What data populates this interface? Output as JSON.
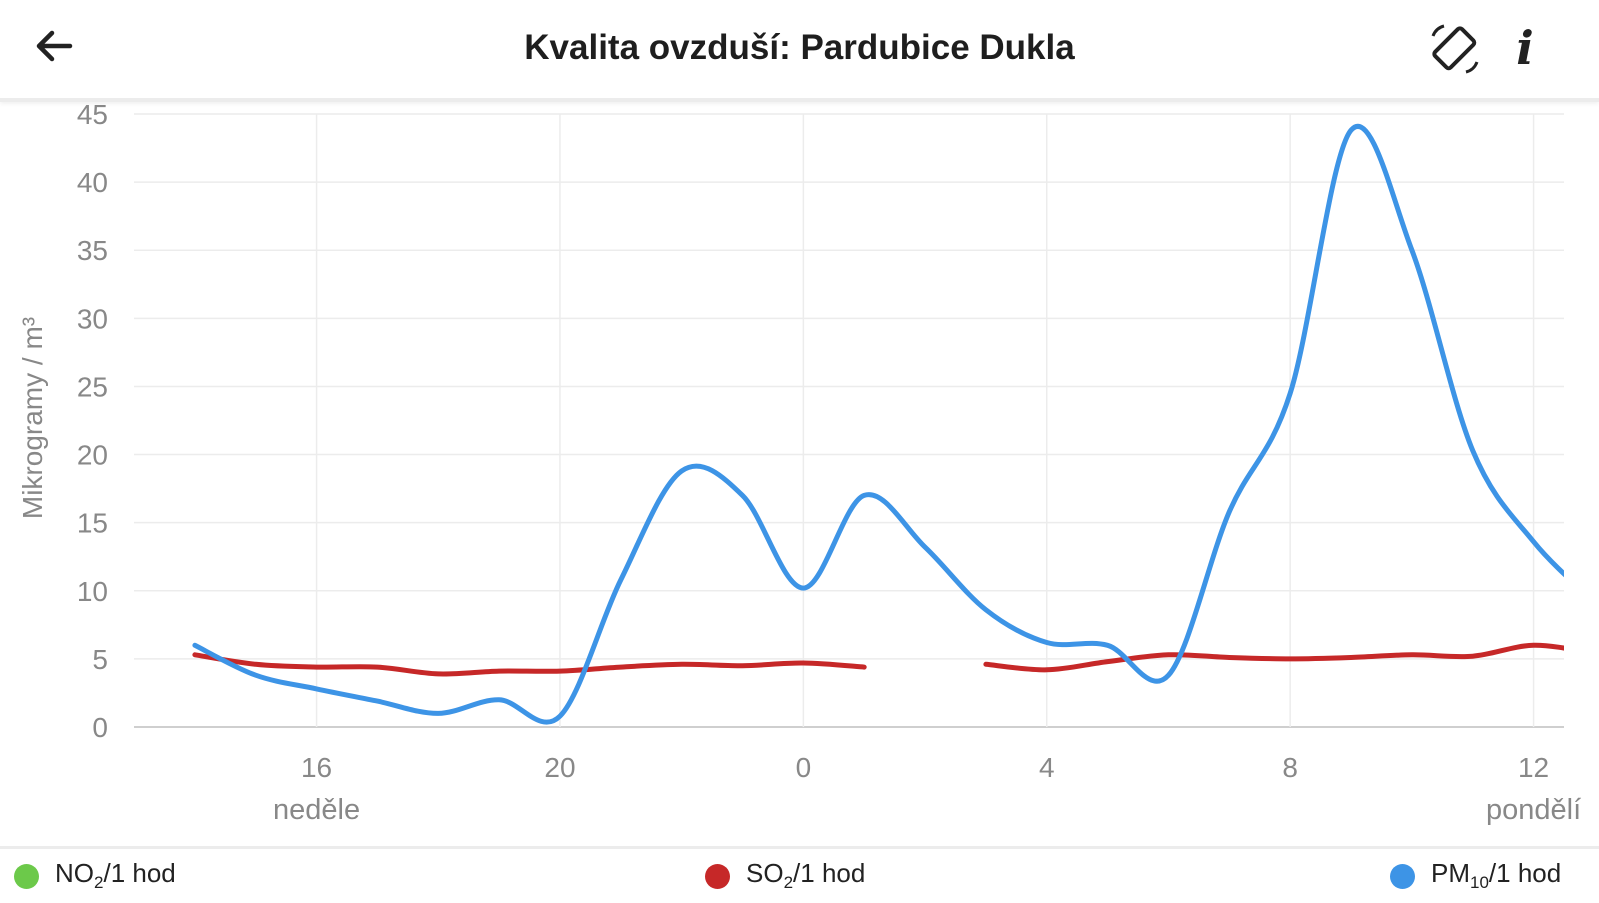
{
  "header": {
    "title": "Kvalita ovzduší: Pardubice Dukla",
    "back_icon": "arrow-left-icon",
    "rotate_icon": "screen-rotation-icon",
    "info_icon": "info-icon",
    "info_glyph": "i"
  },
  "legend": {
    "items": [
      {
        "base": "NO",
        "sub": "2",
        "suffix": "/1 hod",
        "color": "#6cc94a"
      },
      {
        "base": "SO",
        "sub": "2",
        "suffix": "/1 hod",
        "color": "#c62828"
      },
      {
        "base": "PM",
        "sub": "10",
        "suffix": "/1 hod",
        "color": "#3d94e6"
      }
    ]
  },
  "chart_data": {
    "type": "line",
    "ylabel": "Mikrogramy / m³",
    "ylim": [
      0,
      45
    ],
    "yticks": [
      0,
      5,
      10,
      15,
      20,
      25,
      30,
      35,
      40,
      45
    ],
    "xlim": [
      13,
      36.5
    ],
    "xticks": [
      {
        "value": 16,
        "label": "16"
      },
      {
        "value": 20,
        "label": "20"
      },
      {
        "value": 24,
        "label": "0"
      },
      {
        "value": 28,
        "label": "4"
      },
      {
        "value": 32,
        "label": "8"
      },
      {
        "value": 36,
        "label": "12"
      }
    ],
    "day_labels": [
      {
        "value": 16,
        "label": "neděle"
      },
      {
        "value": 36,
        "label": "pondělí"
      }
    ],
    "grid": true,
    "legend_position": "bottom",
    "series": [
      {
        "name": "SO₂/1 hod",
        "color": "#c62828",
        "segments": [
          [
            [
              14,
              5.3
            ],
            [
              15,
              4.6
            ],
            [
              16,
              4.4
            ],
            [
              17,
              4.4
            ],
            [
              18,
              3.9
            ],
            [
              19,
              4.1
            ],
            [
              20,
              4.1
            ],
            [
              21,
              4.4
            ],
            [
              22,
              4.6
            ],
            [
              23,
              4.5
            ],
            [
              24,
              4.7
            ],
            [
              25,
              4.4
            ]
          ],
          [
            [
              27,
              4.6
            ],
            [
              28,
              4.2
            ],
            [
              29,
              4.8
            ],
            [
              30,
              5.3
            ],
            [
              31,
              5.1
            ],
            [
              32,
              5.0
            ],
            [
              33,
              5.1
            ],
            [
              34,
              5.3
            ],
            [
              35,
              5.2
            ],
            [
              36,
              6.0
            ],
            [
              37,
              5.4
            ]
          ]
        ]
      },
      {
        "name": "PM₁₀/1 hod",
        "color": "#3d94e6",
        "segments": [
          [
            [
              14,
              6.0
            ],
            [
              15,
              3.8
            ],
            [
              16,
              2.8
            ],
            [
              17,
              1.9
            ],
            [
              18,
              1.0
            ],
            [
              19,
              2.0
            ],
            [
              20,
              0.8
            ],
            [
              21,
              10.8
            ],
            [
              22,
              18.8
            ],
            [
              23,
              17.0
            ],
            [
              24,
              10.2
            ],
            [
              25,
              17.0
            ],
            [
              26,
              13.2
            ],
            [
              27,
              8.6
            ],
            [
              28,
              6.2
            ],
            [
              29,
              6.0
            ],
            [
              30,
              3.8
            ],
            [
              31,
              15.8
            ],
            [
              32,
              24.5
            ],
            [
              33,
              43.8
            ],
            [
              34,
              35.0
            ],
            [
              35,
              20.3
            ],
            [
              36,
              13.6
            ],
            [
              37,
              9.2
            ]
          ]
        ]
      }
    ]
  }
}
